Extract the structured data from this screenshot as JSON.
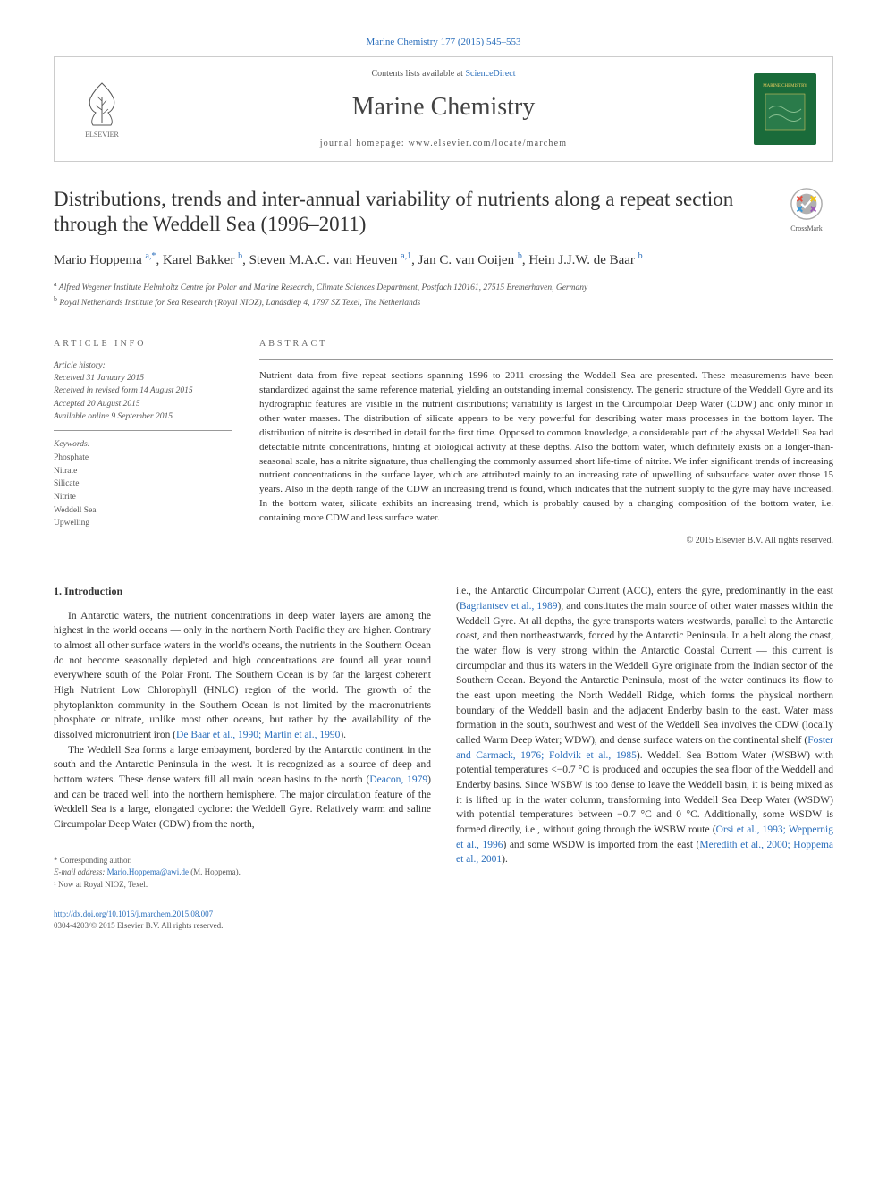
{
  "top_link": "Marine Chemistry 177 (2015) 545–553",
  "header": {
    "publisher": "ELSEVIER",
    "contents_prefix": "Contents lists available at ",
    "contents_link": "ScienceDirect",
    "journal": "Marine Chemistry",
    "homepage": "journal homepage: www.elsevier.com/locate/marchem",
    "cover_text": "MARINE CHEMISTRY"
  },
  "article": {
    "title": "Distributions, trends and inter-annual variability of nutrients along a repeat section through the Weddell Sea (1996–2011)",
    "crossmark": "CrossMark"
  },
  "authors": {
    "line_html": "Mario Hoppema <sup>a,*</sup>, Karel Bakker <sup>b</sup>, Steven M.A.C. van Heuven <sup>a,1</sup>, Jan C. van Ooijen <sup>b</sup>, Hein J.J.W. de Baar <sup>b</sup>"
  },
  "affiliations": [
    {
      "sup": "a",
      "text": "Alfred Wegener Institute Helmholtz Centre for Polar and Marine Research, Climate Sciences Department, Postfach 120161, 27515 Bremerhaven, Germany"
    },
    {
      "sup": "b",
      "text": "Royal Netherlands Institute for Sea Research (Royal NIOZ), Landsdiep 4, 1797 SZ Texel, The Netherlands"
    }
  ],
  "info": {
    "head": "ARTICLE INFO",
    "history_label": "Article history:",
    "history": [
      "Received 31 January 2015",
      "Received in revised form 14 August 2015",
      "Accepted 20 August 2015",
      "Available online 9 September 2015"
    ],
    "keywords_label": "Keywords:",
    "keywords": [
      "Phosphate",
      "Nitrate",
      "Silicate",
      "Nitrite",
      "Weddell Sea",
      "Upwelling"
    ]
  },
  "abstract": {
    "head": "ABSTRACT",
    "text": "Nutrient data from five repeat sections spanning 1996 to 2011 crossing the Weddell Sea are presented. These measurements have been standardized against the same reference material, yielding an outstanding internal consistency. The generic structure of the Weddell Gyre and its hydrographic features are visible in the nutrient distributions; variability is largest in the Circumpolar Deep Water (CDW) and only minor in other water masses. The distribution of silicate appears to be very powerful for describing water mass processes in the bottom layer. The distribution of nitrite is described in detail for the first time. Opposed to common knowledge, a considerable part of the abyssal Weddell Sea had detectable nitrite concentrations, hinting at biological activity at these depths. Also the bottom water, which definitely exists on a longer-than-seasonal scale, has a nitrite signature, thus challenging the commonly assumed short life-time of nitrite. We infer significant trends of increasing nutrient concentrations in the surface layer, which are attributed mainly to an increasing rate of upwelling of subsurface water over those 15 years. Also in the depth range of the CDW an increasing trend is found, which indicates that the nutrient supply to the gyre may have increased. In the bottom water, silicate exhibits an increasing trend, which is probably caused by a changing composition of the bottom water, i.e. containing more CDW and less surface water.",
    "copyright": "© 2015 Elsevier B.V. All rights reserved."
  },
  "body": {
    "heading": "1. Introduction",
    "col1_p1": "In Antarctic waters, the nutrient concentrations in deep water layers are among the highest in the world oceans — only in the northern North Pacific they are higher. Contrary to almost all other surface waters in the world's oceans, the nutrients in the Southern Ocean do not become seasonally depleted and high concentrations are found all year round everywhere south of the Polar Front. The Southern Ocean is by far the largest coherent High Nutrient Low Chlorophyll (HNLC) region of the world. The growth of the phytoplankton community in the Southern Ocean is not limited by the macronutrients phosphate or nitrate, unlike most other oceans, but rather by the availability of the dissolved micronutrient iron (",
    "col1_cite1": "De Baar et al., 1990; Martin et al., 1990",
    "col1_p1_end": ").",
    "col1_p2": "The Weddell Sea forms a large embayment, bordered by the Antarctic continent in the south and the Antarctic Peninsula in the west. It is recognized as a source of deep and bottom waters. These dense waters fill all main ocean basins to the north (",
    "col1_cite2": "Deacon, 1979",
    "col1_p2_mid": ") and can be traced well into the northern hemisphere. The major circulation feature of the Weddell Sea is a large, elongated cyclone: the Weddell Gyre. Relatively warm and saline Circumpolar Deep Water (CDW) from the north,",
    "col2_p1_start": "i.e., the Antarctic Circumpolar Current (ACC), enters the gyre, predominantly in the east (",
    "col2_cite1": "Bagriantsev et al., 1989",
    "col2_p1_mid1": "), and constitutes the main source of other water masses within the Weddell Gyre. At all depths, the gyre transports waters westwards, parallel to the Antarctic coast, and then northeastwards, forced by the Antarctic Peninsula. In a belt along the coast, the water flow is very strong within the Antarctic Coastal Current — this current is circumpolar and thus its waters in the Weddell Gyre originate from the Indian sector of the Southern Ocean. Beyond the Antarctic Peninsula, most of the water continues its flow to the east upon meeting the North Weddell Ridge, which forms the physical northern boundary of the Weddell basin and the adjacent Enderby basin to the east. Water mass formation in the south, southwest and west of the Weddell Sea involves the CDW (locally called Warm Deep Water; WDW), and dense surface waters on the continental shelf (",
    "col2_cite2": "Foster and Carmack, 1976; Foldvik et al., 1985",
    "col2_p1_mid2": "). Weddell Sea Bottom Water (WSBW) with potential temperatures <−0.7 °C is produced and occupies the sea floor of the Weddell and Enderby basins. Since WSBW is too dense to leave the Weddell basin, it is being mixed as it is lifted up in the water column, transforming into Weddell Sea Deep Water (WSDW) with potential temperatures between −0.7 °C and 0 °C. Additionally, some WSDW is formed directly, i.e., without going through the WSBW route (",
    "col2_cite3": "Orsi et al., 1993; Weppernig et al., 1996",
    "col2_p1_mid3": ") and some WSDW is imported from the east (",
    "col2_cite4": "Meredith et al., 2000; Hoppema et al., 2001",
    "col2_p1_end": ")."
  },
  "footnotes": {
    "corr": "*  Corresponding author.",
    "email_label": "E-mail address: ",
    "email": "Mario.Hoppema@awi.de",
    "email_person": " (M. Hoppema).",
    "note1": "¹  Now at Royal NIOZ, Texel."
  },
  "bottom": {
    "doi": "http://dx.doi.org/10.1016/j.marchem.2015.08.007",
    "issn_line": "0304-4203/© 2015 Elsevier B.V. All rights reserved."
  },
  "colors": {
    "link": "#2a6ebb",
    "rule": "#999999",
    "cover_bg": "#1a6b3a"
  }
}
